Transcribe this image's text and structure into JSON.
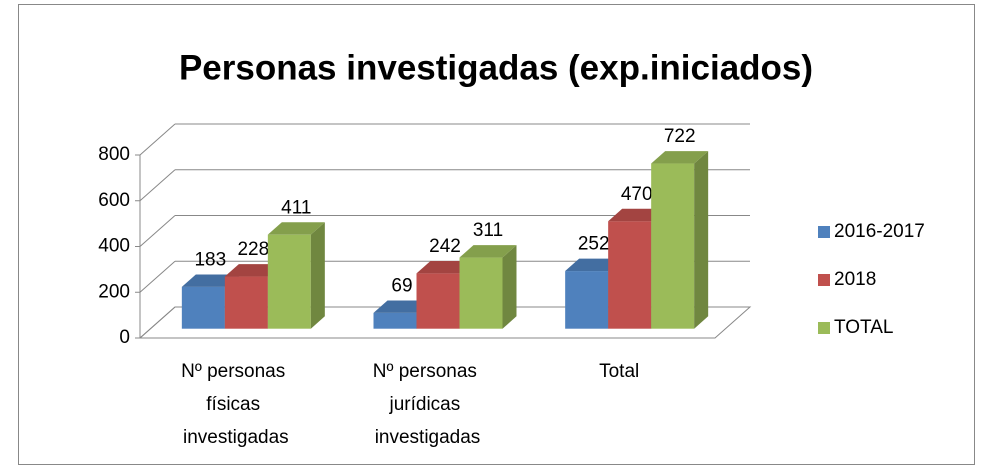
{
  "chart_data": {
    "type": "bar3d",
    "title": "Personas investigadas (exp.iniciados)",
    "categories": [
      "Nº personas físicas investigadas",
      "Nº personas jurídicas investigadas",
      "Total"
    ],
    "series": [
      {
        "name": "2016-2017",
        "color": "#4f81bd",
        "values": [
          183,
          69,
          252
        ]
      },
      {
        "name": "2018",
        "color": "#c0504d",
        "values": [
          228,
          242,
          470
        ]
      },
      {
        "name": "TOTAL",
        "color": "#9bbb59",
        "values": [
          411,
          311,
          722
        ]
      }
    ],
    "ylim": [
      0,
      800
    ],
    "yticks": [
      0,
      200,
      400,
      600,
      800
    ],
    "grid": true,
    "legend": "right"
  }
}
